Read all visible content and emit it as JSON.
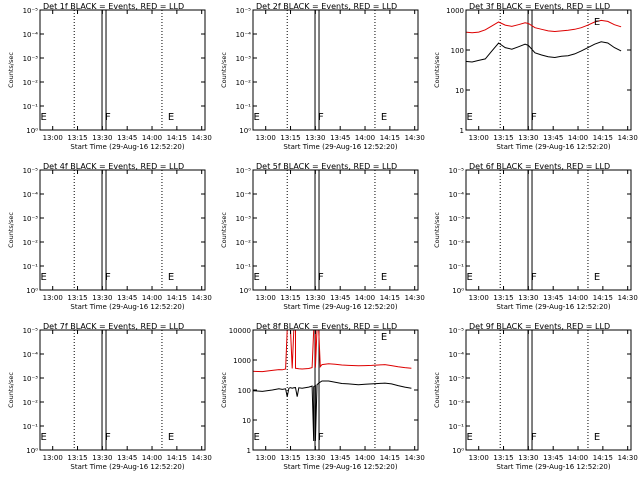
{
  "chart_data": [
    {
      "type": "line",
      "title": "Det 1f BLACK = Events, RED = LLD",
      "xlabel": "Start Time (29-Aug-16 12:52:20)",
      "ylabel": "Counts/sec",
      "x_ticks": [
        "13:00",
        "13:15",
        "13:30",
        "13:45",
        "14:00",
        "14:15",
        "14:30"
      ],
      "y_scale": "log",
      "y_ticks": [
        "10⁰",
        "10⁻¹",
        "10⁻²",
        "10⁻³",
        "10⁻⁴",
        "10⁻⁵"
      ],
      "ylim": [
        1,
        1e-05
      ],
      "markers": [
        {
          "label": "E",
          "x": "12:52"
        },
        {
          "label": "F",
          "x": "13:31"
        },
        {
          "label": "E",
          "x": "14:09"
        }
      ],
      "series": []
    },
    {
      "type": "line",
      "title": "Det 2f BLACK = Events, RED = LLD",
      "xlabel": "Start Time (29-Aug-16 12:52:20)",
      "ylabel": "Counts/sec",
      "x_ticks": [
        "13:00",
        "13:15",
        "13:30",
        "13:45",
        "14:00",
        "14:15",
        "14:30"
      ],
      "y_scale": "log",
      "y_ticks": [
        "10⁰",
        "10⁻¹",
        "10⁻²",
        "10⁻³",
        "10⁻⁴",
        "10⁻⁵"
      ],
      "ylim": [
        1,
        1e-05
      ],
      "markers": [
        {
          "label": "E",
          "x": "12:52"
        },
        {
          "label": "F",
          "x": "13:31"
        },
        {
          "label": "E",
          "x": "14:09"
        }
      ],
      "series": []
    },
    {
      "type": "line",
      "title": "Det 3f BLACK = Events, RED = LLD",
      "xlabel": "Start Time (29-Aug-16 12:52:20)",
      "ylabel": "Counts/sec",
      "x_ticks": [
        "13:00",
        "13:15",
        "13:30",
        "13:45",
        "14:00",
        "14:15",
        "14:30"
      ],
      "y_scale": "log",
      "y_ticks": [
        "1",
        "10",
        "100",
        "1000"
      ],
      "ylim": [
        1,
        1000
      ],
      "markers": [
        {
          "label": "E",
          "x": "12:52"
        },
        {
          "label": "F",
          "x": "13:31"
        },
        {
          "label": "E",
          "x": "14:09"
        }
      ],
      "series": [
        {
          "color": "#dd0000",
          "x": [
            "12:52",
            "12:56",
            "13:00",
            "13:04",
            "13:08",
            "13:12",
            "13:16",
            "13:20",
            "13:24",
            "13:28",
            "13:30",
            "13:34",
            "13:38",
            "13:42",
            "13:46",
            "13:50",
            "13:54",
            "13:58",
            "14:02",
            "14:06",
            "14:10",
            "14:14",
            "14:18",
            "14:22",
            "14:26"
          ],
          "y": [
            280,
            270,
            280,
            320,
            400,
            500,
            420,
            390,
            430,
            480,
            460,
            360,
            330,
            300,
            290,
            300,
            310,
            330,
            360,
            420,
            500,
            550,
            520,
            430,
            380
          ]
        },
        {
          "color": "#000000",
          "x": [
            "12:52",
            "12:56",
            "13:00",
            "13:04",
            "13:08",
            "13:12",
            "13:16",
            "13:20",
            "13:24",
            "13:28",
            "13:30",
            "13:34",
            "13:38",
            "13:42",
            "13:46",
            "13:50",
            "13:54",
            "13:58",
            "14:02",
            "14:06",
            "14:10",
            "14:14",
            "14:18",
            "14:22",
            "14:26"
          ],
          "y": [
            52,
            50,
            55,
            60,
            95,
            150,
            115,
            105,
            120,
            140,
            130,
            85,
            75,
            68,
            65,
            70,
            72,
            80,
            95,
            115,
            140,
            160,
            150,
            115,
            95
          ]
        }
      ]
    },
    {
      "type": "line",
      "title": "Det 4f BLACK = Events, RED = LLD",
      "xlabel": "Start Time (29-Aug-16 12:52:20)",
      "ylabel": "Counts/sec",
      "x_ticks": [
        "13:00",
        "13:15",
        "13:30",
        "13:45",
        "14:00",
        "14:15",
        "14:30"
      ],
      "y_scale": "log",
      "y_ticks": [
        "10⁰",
        "10⁻¹",
        "10⁻²",
        "10⁻³",
        "10⁻⁴",
        "10⁻⁵"
      ],
      "ylim": [
        1,
        1e-05
      ],
      "markers": [
        {
          "label": "E",
          "x": "12:52"
        },
        {
          "label": "F",
          "x": "13:31"
        },
        {
          "label": "E",
          "x": "14:09"
        }
      ],
      "series": []
    },
    {
      "type": "line",
      "title": "Det 5f BLACK = Events, RED = LLD",
      "xlabel": "Start Time (29-Aug-16 12:52:20)",
      "ylabel": "Counts/sec",
      "x_ticks": [
        "13:00",
        "13:15",
        "13:30",
        "13:45",
        "14:00",
        "14:15",
        "14:30"
      ],
      "y_scale": "log",
      "y_ticks": [
        "10⁰",
        "10⁻¹",
        "10⁻²",
        "10⁻³",
        "10⁻⁴",
        "10⁻⁵"
      ],
      "ylim": [
        1,
        1e-05
      ],
      "markers": [
        {
          "label": "E",
          "x": "12:52"
        },
        {
          "label": "F",
          "x": "13:31"
        },
        {
          "label": "E",
          "x": "14:09"
        }
      ],
      "series": []
    },
    {
      "type": "line",
      "title": "Det 6f BLACK = Events, RED = LLD",
      "xlabel": "Start Time (29-Aug-16 12:52:20)",
      "ylabel": "Counts/sec",
      "x_ticks": [
        "13:00",
        "13:15",
        "13:30",
        "13:45",
        "14:00",
        "14:15",
        "14:30"
      ],
      "y_scale": "log",
      "y_ticks": [
        "10⁰",
        "10⁻¹",
        "10⁻²",
        "10⁻³",
        "10⁻⁴",
        "10⁻⁵"
      ],
      "ylim": [
        1,
        1e-05
      ],
      "markers": [
        {
          "label": "E",
          "x": "12:52"
        },
        {
          "label": "F",
          "x": "13:31"
        },
        {
          "label": "E",
          "x": "14:09"
        }
      ],
      "series": []
    },
    {
      "type": "line",
      "title": "Det 7f BLACK = Events, RED = LLD",
      "xlabel": "Start Time (29-Aug-16 12:52:20)",
      "ylabel": "Counts/sec",
      "x_ticks": [
        "13:00",
        "13:15",
        "13:30",
        "13:45",
        "14:00",
        "14:15",
        "14:30"
      ],
      "y_scale": "log",
      "y_ticks": [
        "10⁰",
        "10⁻¹",
        "10⁻²",
        "10⁻³",
        "10⁻⁴",
        "10⁻⁵"
      ],
      "ylim": [
        1,
        1e-05
      ],
      "markers": [
        {
          "label": "E",
          "x": "12:52"
        },
        {
          "label": "F",
          "x": "13:31"
        },
        {
          "label": "E",
          "x": "14:09"
        }
      ],
      "series": []
    },
    {
      "type": "line",
      "title": "Det 8f BLACK = Events, RED = LLD",
      "xlabel": "Start Time (29-Aug-16 12:52:20)",
      "ylabel": "Counts/sec",
      "x_ticks": [
        "13:00",
        "13:15",
        "13:30",
        "13:45",
        "14:00",
        "14:15",
        "14:30"
      ],
      "y_scale": "log",
      "y_ticks": [
        "1",
        "10",
        "100",
        "1000",
        "10000"
      ],
      "ylim": [
        1,
        10000
      ],
      "markers": [
        {
          "label": "E",
          "x": "12:52"
        },
        {
          "label": "F",
          "x": "13:31"
        },
        {
          "label": "E",
          "x": "14:09"
        }
      ],
      "series": [
        {
          "color": "#dd0000",
          "x": [
            "12:52",
            "12:58",
            "13:04",
            "13:08",
            "13:10",
            "13:12",
            "13:13",
            "13:14",
            "13:15",
            "13:16",
            "13:17",
            "13:18",
            "13:18",
            "13:19",
            "13:20",
            "13:22",
            "13:26",
            "13:28",
            "13:29",
            "13:30",
            "13:30",
            "13:31",
            "13:32",
            "13:33",
            "13:34",
            "13:38",
            "13:42",
            "13:46",
            "13:50",
            "13:56",
            "14:00",
            "14:04",
            "14:08",
            "14:12",
            "14:16",
            "14:20",
            "14:24",
            "14:28"
          ],
          "y": [
            420,
            410,
            450,
            480,
            470,
            500,
            10000,
            10000,
            10000,
            520,
            10000,
            10000,
            530,
            520,
            510,
            500,
            520,
            560,
            10000,
            10000,
            560,
            10000,
            10000,
            600,
            700,
            750,
            720,
            680,
            660,
            640,
            650,
            660,
            680,
            700,
            650,
            600,
            560,
            530
          ]
        },
        {
          "color": "#000000",
          "x": [
            "12:52",
            "12:58",
            "13:04",
            "13:08",
            "13:10",
            "13:12",
            "13:13",
            "13:14",
            "13:15",
            "13:16",
            "13:17",
            "13:18",
            "13:19",
            "13:20",
            "13:22",
            "13:26",
            "13:27",
            "13:28",
            "13:29",
            "13:29",
            "13:30",
            "13:30",
            "13:31",
            "13:32",
            "13:34",
            "13:38",
            "13:42",
            "13:46",
            "13:50",
            "13:56",
            "14:00",
            "14:04",
            "14:08",
            "14:12",
            "14:16",
            "14:20",
            "14:24",
            "14:28"
          ],
          "y": [
            95,
            90,
            100,
            110,
            105,
            110,
            60,
            115,
            120,
            115,
            118,
            120,
            60,
            118,
            115,
            125,
            130,
            135,
            2,
            130,
            140,
            2,
            150,
            170,
            200,
            200,
            180,
            165,
            160,
            150,
            155,
            160,
            165,
            170,
            160,
            140,
            125,
            115
          ]
        }
      ]
    },
    {
      "type": "line",
      "title": "Det 9f BLACK = Events, RED = LLD",
      "xlabel": "Start Time (29-Aug-16 12:52:20)",
      "ylabel": "Counts/sec",
      "x_ticks": [
        "13:00",
        "13:15",
        "13:30",
        "13:45",
        "14:00",
        "14:15",
        "14:30"
      ],
      "y_scale": "log",
      "y_ticks": [
        "10⁰",
        "10⁻¹",
        "10⁻²",
        "10⁻³",
        "10⁻⁴",
        "10⁻⁵"
      ],
      "ylim": [
        1,
        1e-05
      ],
      "markers": [
        {
          "label": "E",
          "x": "12:52"
        },
        {
          "label": "F",
          "x": "13:31"
        },
        {
          "label": "E",
          "x": "14:09"
        }
      ],
      "series": []
    }
  ]
}
